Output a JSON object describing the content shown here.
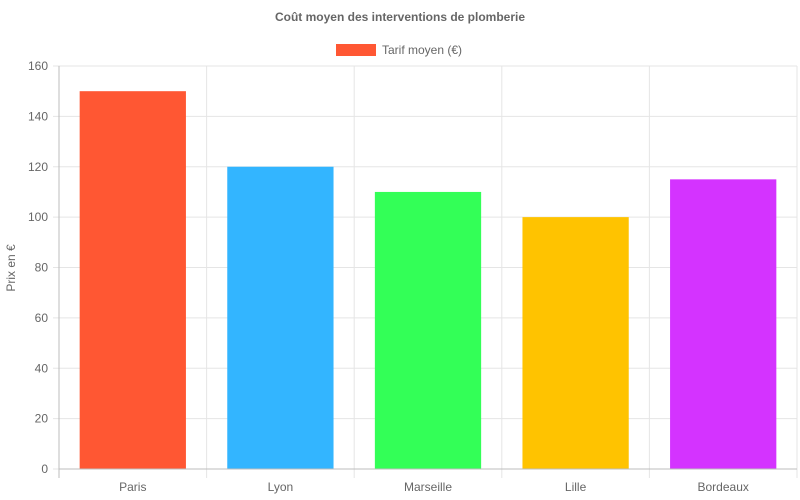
{
  "chart_data": {
    "type": "bar",
    "title": "Coût moyen des interventions de plomberie",
    "categories": [
      "Paris",
      "Lyon",
      "Marseille",
      "Lille",
      "Bordeaux"
    ],
    "series": [
      {
        "name": "Tarif moyen (€)",
        "values": [
          150,
          120,
          110,
          100,
          115
        ]
      }
    ],
    "bar_colors": [
      "#ff5733",
      "#33b5ff",
      "#33ff57",
      "#ffc300",
      "#d433ff"
    ],
    "legend_color": "#ff5733",
    "xlabel": "",
    "ylabel": "Prix en €",
    "ylim": [
      0,
      160
    ],
    "yticks": [
      "0",
      "20",
      "40",
      "60",
      "80",
      "100",
      "120",
      "140",
      "160"
    ],
    "grid": true,
    "legend_position": "top"
  }
}
